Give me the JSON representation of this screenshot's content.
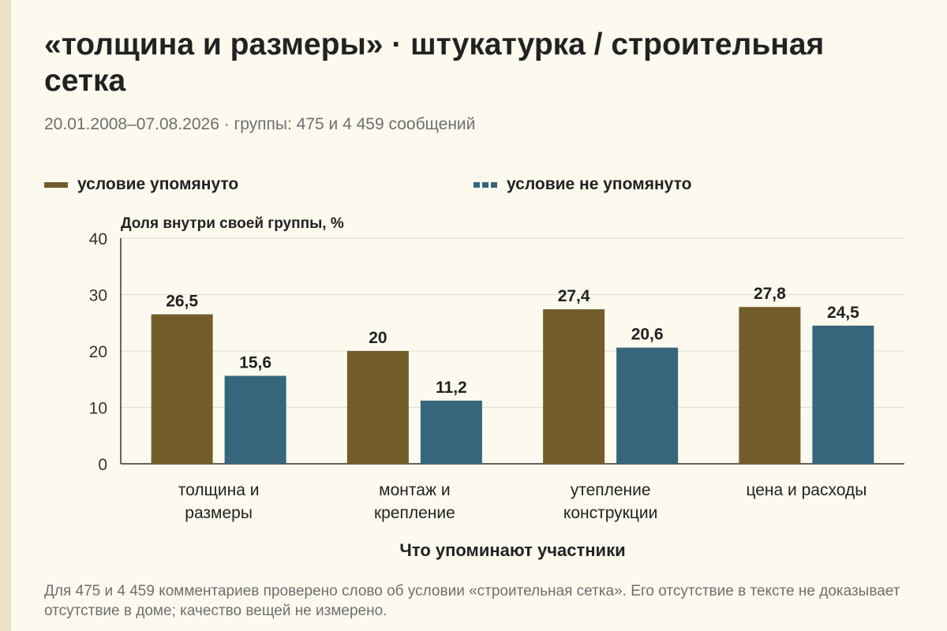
{
  "title": "«толщина и размеры» · штукатурка / строительная сетка",
  "subtitle": "20.01.2008–07.08.2026 · группы: 475 и 4 459 сообщений",
  "note": "Для 475 и 4 459 комментариев проверено слово об условии «строительная сетка». Его отсутствие в тексте не доказывает отсутствие в доме; качество вещей не измерено.",
  "colors": {
    "mentioned": "#725d2a",
    "not_mentioned": "#36667b",
    "grid": "#e0ddd3",
    "axis": "#333333"
  },
  "chart_data": {
    "type": "bar",
    "ylabel": "Доля внутри своей группы, %",
    "xlabel": "Что упоминают участники",
    "ylim": [
      0,
      40
    ],
    "yticks": [
      0,
      10,
      20,
      30,
      40
    ],
    "grid": true,
    "legend_position": "top",
    "categories": [
      [
        "толщина и",
        "размеры"
      ],
      [
        "монтаж и",
        "крепление"
      ],
      [
        "утепление",
        "конструкции"
      ],
      [
        "цена и расходы"
      ]
    ],
    "series": [
      {
        "name": "условие упомянуто",
        "values": [
          26.5,
          20,
          27.4,
          27.8
        ],
        "labels": [
          "26,5",
          "20",
          "27,4",
          "27,8"
        ]
      },
      {
        "name": "условие не упомянуто",
        "values": [
          15.6,
          11.2,
          20.6,
          24.5
        ],
        "labels": [
          "15,6",
          "11,2",
          "20,6",
          "24,5"
        ]
      }
    ]
  }
}
